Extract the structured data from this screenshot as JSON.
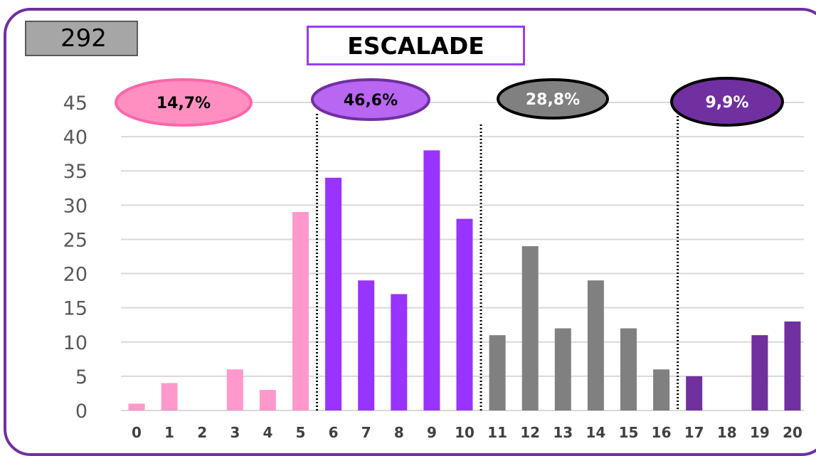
{
  "count": "292",
  "chart_data": {
    "type": "bar",
    "title": "ESCALADE",
    "categories": [
      "0",
      "1",
      "2",
      "3",
      "4",
      "5",
      "6",
      "7",
      "8",
      "9",
      "10",
      "11",
      "12",
      "13",
      "14",
      "15",
      "16",
      "17",
      "18",
      "19",
      "20"
    ],
    "values": [
      1,
      4,
      0,
      6,
      3,
      29,
      34,
      19,
      17,
      38,
      28,
      11,
      24,
      12,
      19,
      12,
      6,
      5,
      0,
      11,
      13
    ],
    "ylim": [
      0,
      45
    ],
    "yticks": [
      "0",
      "5",
      "10",
      "15",
      "20",
      "25",
      "30",
      "35",
      "40",
      "45"
    ],
    "grid": true,
    "groups": [
      {
        "label": "14,7%",
        "from": 0,
        "to": 5,
        "color": "#ff99cc",
        "badge_fill": "#ff8fc0",
        "badge_stroke": "#ff66aa"
      },
      {
        "label": "46,6%",
        "from": 6,
        "to": 10,
        "color": "#9933ff",
        "badge_fill": "#b966f2",
        "badge_stroke": "#7030a0"
      },
      {
        "label": "28,8%",
        "from": 11,
        "to": 16,
        "color": "#808080",
        "badge_fill": "#808080",
        "badge_stroke": "#000000"
      },
      {
        "label": "9,9%",
        "from": 17,
        "to": 20,
        "color": "#7030a0",
        "badge_fill": "#7030a0",
        "badge_stroke": "#000000"
      }
    ]
  }
}
